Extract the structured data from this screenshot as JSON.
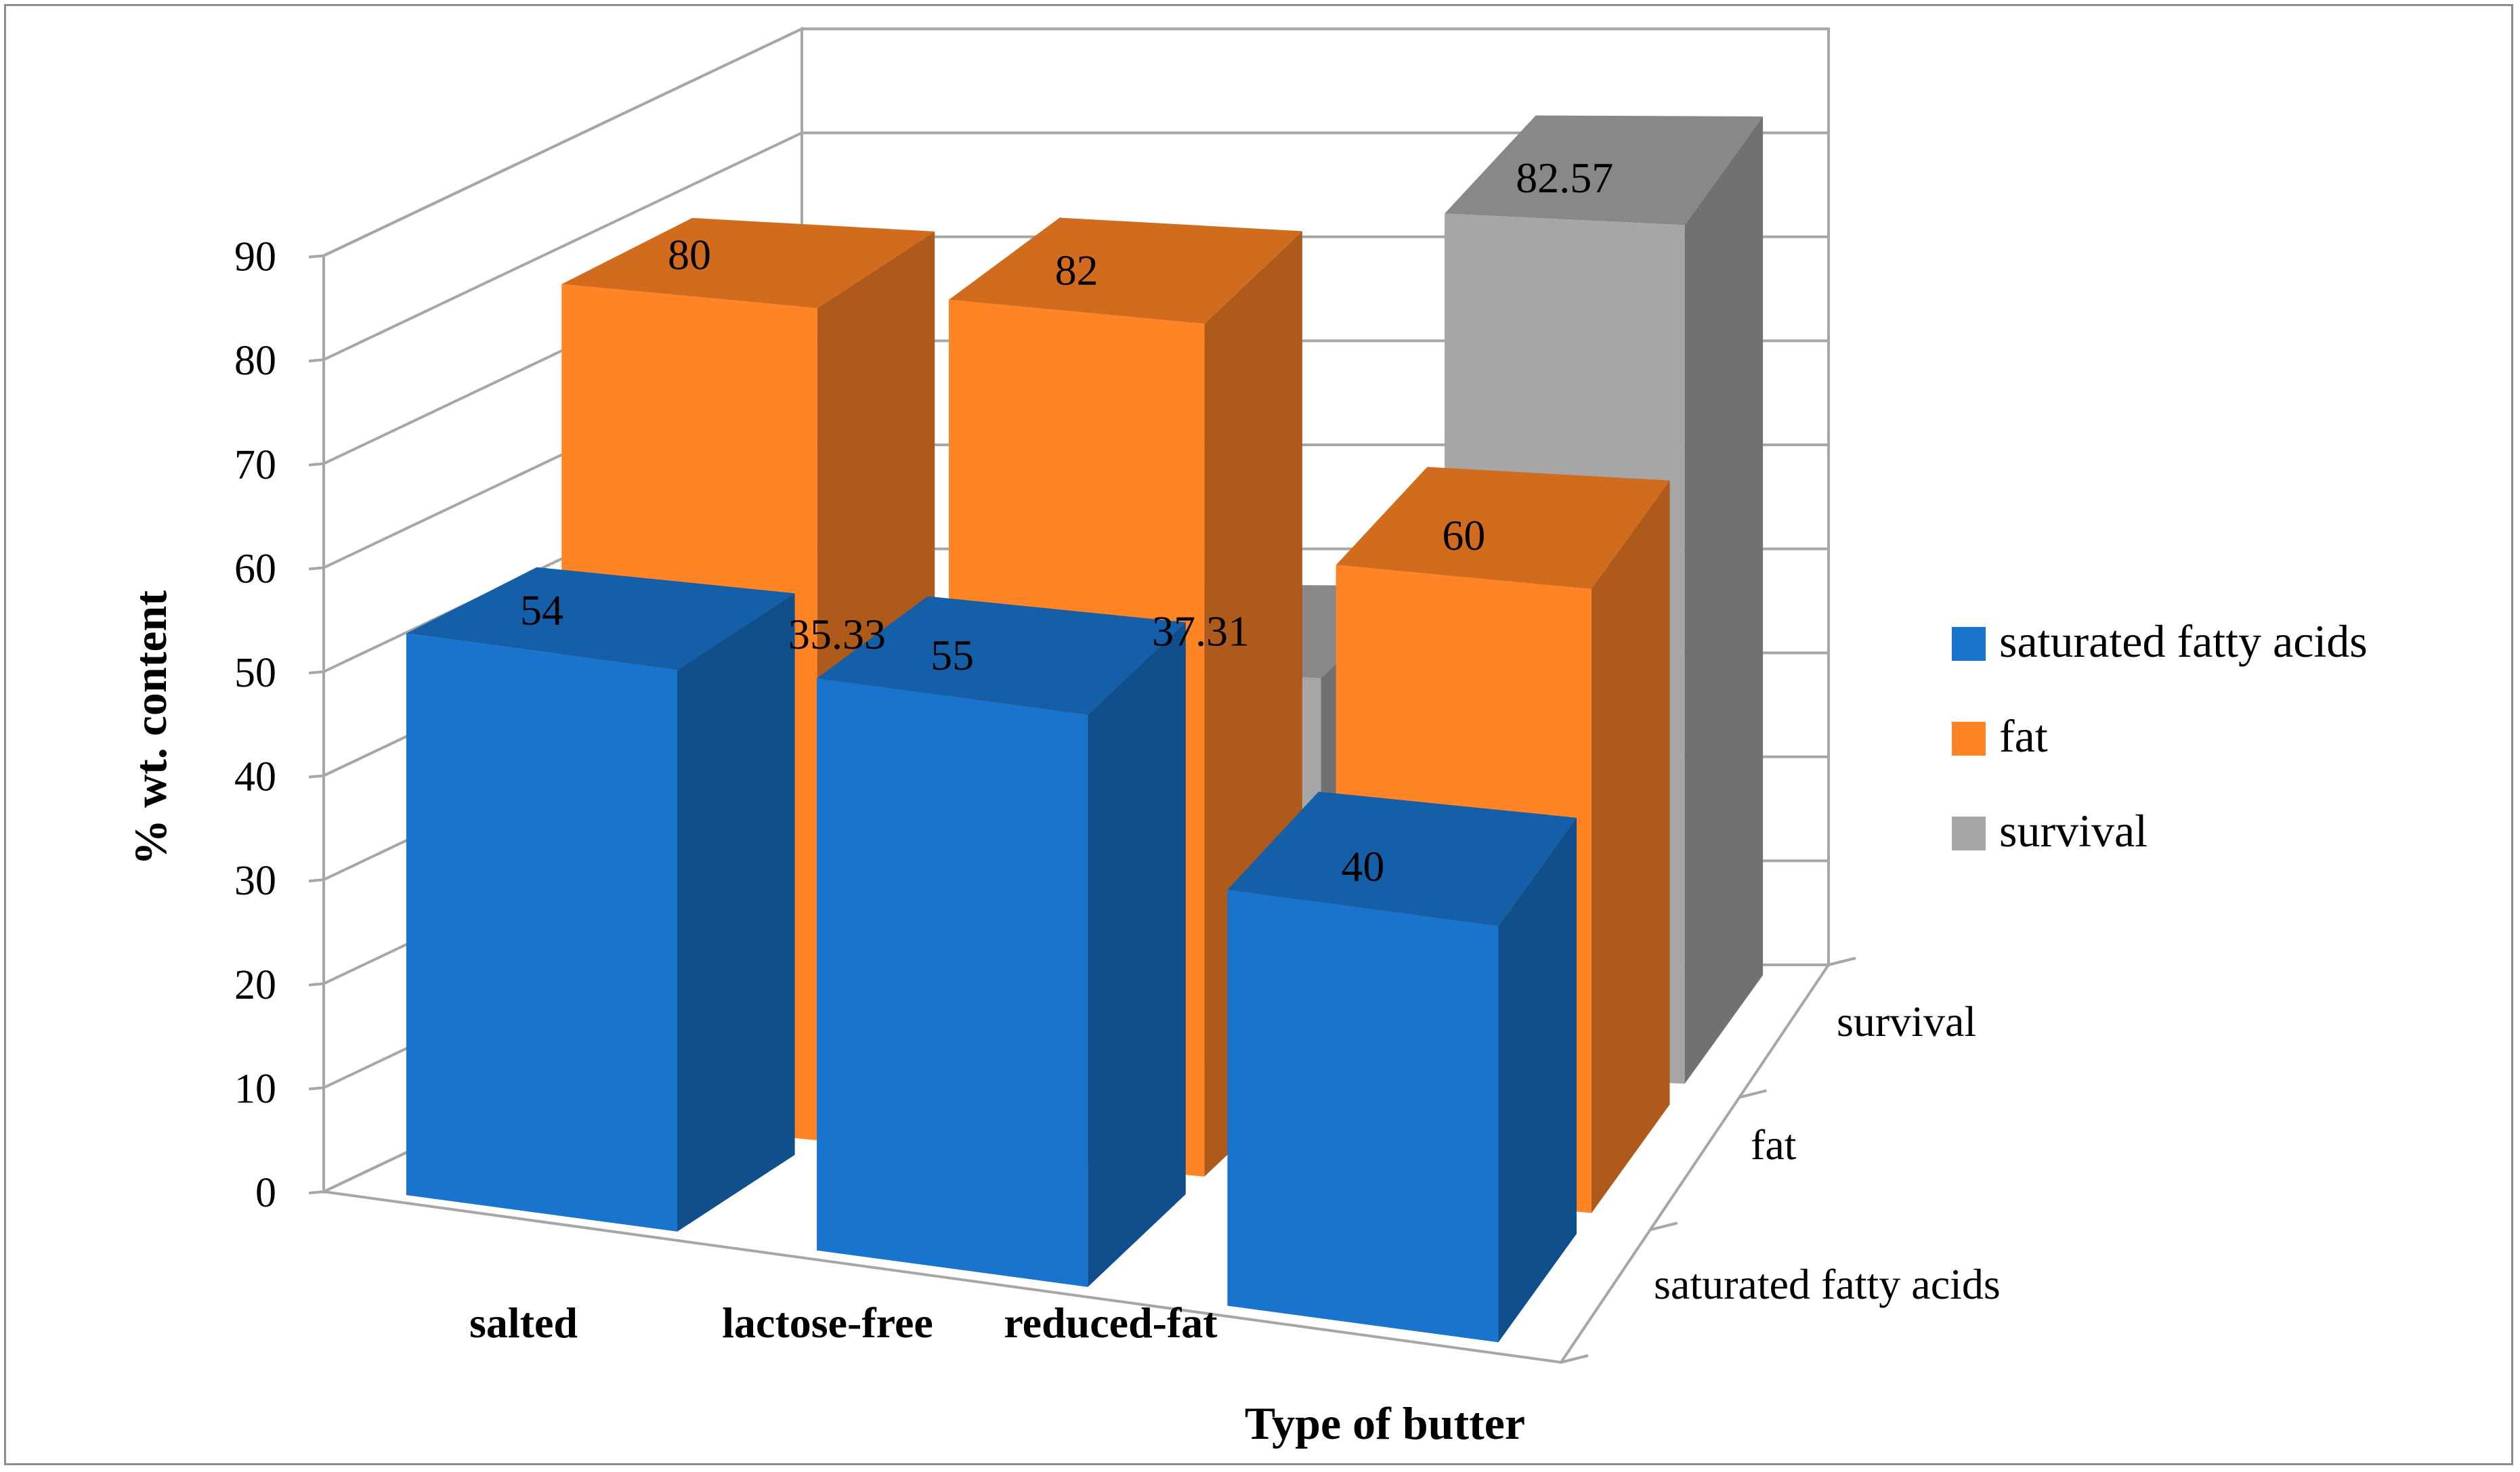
{
  "chart_data": {
    "type": "bar",
    "variant": "3d-column",
    "categories": [
      "salted",
      "lactose-free",
      "reduced-fat"
    ],
    "series": [
      {
        "name": "saturated fatty acids",
        "color": "#1874CD",
        "values": [
          54,
          55,
          40
        ],
        "labels": [
          "54",
          "55",
          "40"
        ]
      },
      {
        "name": "fat",
        "color": "#FF8426",
        "values": [
          80,
          82,
          60
        ],
        "labels": [
          "80",
          "82",
          "60"
        ]
      },
      {
        "name": "survival",
        "color": "#A6A6A6",
        "values": [
          35.33,
          37.31,
          82.57
        ],
        "labels": [
          "35.33",
          "37.31",
          "82.57"
        ]
      }
    ],
    "xlabel": "Type of butter",
    "ylabel": "% wt. content",
    "ylim": [
      0,
      90
    ],
    "yticks": [
      "0",
      "10",
      "20",
      "30",
      "40",
      "50",
      "60",
      "70",
      "80",
      "90"
    ],
    "depth_labels": [
      "saturated fatty acids",
      "fat",
      "survival"
    ],
    "legend_position": "right",
    "grid": true
  }
}
